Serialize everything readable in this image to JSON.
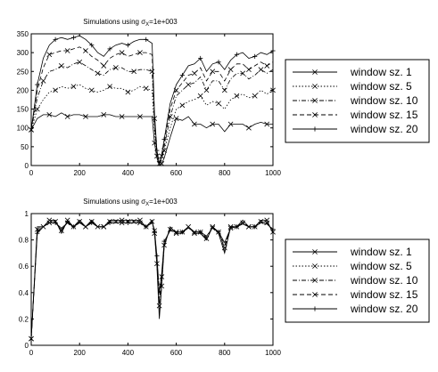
{
  "chart_data": [
    {
      "type": "line",
      "title_prefix": "Simulations using ",
      "title_symbol": "σ",
      "title_sub": "X",
      "title_suffix": "=1e+003",
      "xlim": [
        0,
        1000
      ],
      "ylim": [
        0,
        350
      ],
      "xticks": [
        0,
        200,
        400,
        600,
        800,
        1000
      ],
      "yticks": [
        0,
        50,
        100,
        150,
        200,
        250,
        300,
        350
      ],
      "grid": false,
      "legend_position": "right",
      "x": [
        0,
        25,
        50,
        75,
        100,
        125,
        150,
        175,
        200,
        225,
        250,
        275,
        300,
        325,
        350,
        375,
        400,
        425,
        450,
        475,
        500,
        510,
        520,
        530,
        540,
        550,
        575,
        600,
        625,
        650,
        675,
        700,
        725,
        750,
        775,
        800,
        825,
        850,
        875,
        900,
        925,
        950,
        975,
        1000
      ],
      "series": [
        {
          "name": "window sz. 1",
          "marker": "x",
          "dash": "",
          "values": [
            95,
            125,
            135,
            135,
            130,
            140,
            130,
            135,
            135,
            130,
            130,
            130,
            135,
            135,
            130,
            130,
            130,
            130,
            130,
            130,
            130,
            60,
            20,
            0,
            5,
            20,
            75,
            125,
            120,
            130,
            110,
            110,
            100,
            110,
            110,
            90,
            110,
            110,
            110,
            100,
            110,
            115,
            110,
            110
          ]
        },
        {
          "name": "window sz. 5",
          "marker": "x",
          "dash": "1.5,2",
          "values": [
            95,
            150,
            175,
            195,
            200,
            210,
            205,
            210,
            215,
            205,
            200,
            195,
            200,
            210,
            205,
            205,
            195,
            200,
            210,
            205,
            200,
            90,
            25,
            5,
            15,
            40,
            100,
            150,
            160,
            170,
            175,
            185,
            160,
            170,
            165,
            150,
            175,
            185,
            190,
            180,
            185,
            200,
            190,
            200
          ]
        },
        {
          "name": "window sz. 10",
          "marker": "x",
          "dash": "5,2,1,2",
          "values": [
            95,
            180,
            225,
            250,
            255,
            265,
            260,
            270,
            275,
            265,
            255,
            245,
            240,
            255,
            260,
            260,
            250,
            250,
            255,
            255,
            250,
            110,
            30,
            5,
            20,
            50,
            130,
            185,
            200,
            215,
            220,
            235,
            200,
            225,
            225,
            200,
            230,
            245,
            245,
            230,
            240,
            255,
            245,
            255
          ]
        },
        {
          "name": "window sz. 15",
          "marker": "x",
          "dash": "5,3",
          "values": [
            95,
            200,
            260,
            295,
            300,
            305,
            305,
            310,
            315,
            305,
            290,
            280,
            265,
            285,
            295,
            300,
            290,
            295,
            300,
            300,
            295,
            125,
            35,
            5,
            25,
            60,
            150,
            200,
            220,
            240,
            245,
            260,
            225,
            250,
            250,
            225,
            255,
            270,
            270,
            255,
            265,
            275,
            265,
            275
          ]
        },
        {
          "name": "window sz. 20",
          "marker": "+",
          "dash": "",
          "values": [
            95,
            215,
            285,
            320,
            335,
            340,
            335,
            340,
            345,
            335,
            320,
            300,
            290,
            310,
            320,
            325,
            320,
            330,
            335,
            335,
            325,
            140,
            40,
            5,
            30,
            70,
            165,
            215,
            240,
            265,
            270,
            285,
            250,
            270,
            275,
            255,
            280,
            295,
            300,
            285,
            290,
            300,
            295,
            305
          ]
        }
      ]
    },
    {
      "type": "line",
      "title_prefix": "Simulations using ",
      "title_symbol": "σ",
      "title_sub": "X",
      "title_suffix": "=1e+003",
      "xlim": [
        0,
        1000
      ],
      "ylim": [
        0,
        1
      ],
      "xticks": [
        0,
        200,
        400,
        600,
        800,
        1000
      ],
      "yticks": [
        0,
        0.2,
        0.4,
        0.6,
        0.8,
        1
      ],
      "grid": false,
      "legend_position": "right",
      "x": [
        0,
        25,
        50,
        75,
        100,
        125,
        150,
        175,
        200,
        225,
        250,
        275,
        300,
        325,
        350,
        375,
        400,
        425,
        450,
        475,
        500,
        510,
        520,
        530,
        540,
        550,
        575,
        600,
        625,
        650,
        675,
        700,
        725,
        750,
        775,
        800,
        825,
        850,
        875,
        900,
        925,
        950,
        975,
        1000
      ],
      "series": [
        {
          "name": "window sz. 1",
          "marker": "x",
          "dash": "",
          "values": [
            0.05,
            0.9,
            0.9,
            0.95,
            0.95,
            0.85,
            0.95,
            0.9,
            0.95,
            0.9,
            0.95,
            0.9,
            0.9,
            0.95,
            0.95,
            0.95,
            0.95,
            0.95,
            0.95,
            0.9,
            0.95,
            0.85,
            0.6,
            0.2,
            0.45,
            0.75,
            0.9,
            0.85,
            0.85,
            0.9,
            0.85,
            0.85,
            0.8,
            0.9,
            0.85,
            0.7,
            0.9,
            0.9,
            0.95,
            0.9,
            0.9,
            0.95,
            0.95,
            0.85
          ]
        },
        {
          "name": "window sz. 5",
          "marker": "x",
          "dash": "1.5,2",
          "values": [
            0.05,
            0.88,
            0.9,
            0.94,
            0.94,
            0.86,
            0.94,
            0.9,
            0.94,
            0.9,
            0.94,
            0.9,
            0.9,
            0.94,
            0.94,
            0.94,
            0.94,
            0.94,
            0.94,
            0.9,
            0.94,
            0.86,
            0.62,
            0.25,
            0.47,
            0.76,
            0.89,
            0.86,
            0.86,
            0.9,
            0.86,
            0.86,
            0.8,
            0.9,
            0.86,
            0.72,
            0.9,
            0.9,
            0.94,
            0.9,
            0.9,
            0.94,
            0.94,
            0.86
          ]
        },
        {
          "name": "window sz. 10",
          "marker": "x",
          "dash": "5,2,1,2",
          "values": [
            0.05,
            0.87,
            0.9,
            0.94,
            0.94,
            0.87,
            0.94,
            0.9,
            0.94,
            0.9,
            0.94,
            0.9,
            0.9,
            0.94,
            0.94,
            0.94,
            0.94,
            0.94,
            0.94,
            0.9,
            0.94,
            0.87,
            0.64,
            0.3,
            0.5,
            0.77,
            0.88,
            0.86,
            0.86,
            0.9,
            0.86,
            0.86,
            0.81,
            0.9,
            0.86,
            0.74,
            0.9,
            0.9,
            0.93,
            0.9,
            0.9,
            0.94,
            0.93,
            0.87
          ]
        },
        {
          "name": "window sz. 15",
          "marker": "x",
          "dash": "5,3",
          "values": [
            0.05,
            0.86,
            0.9,
            0.93,
            0.93,
            0.88,
            0.93,
            0.9,
            0.93,
            0.9,
            0.93,
            0.9,
            0.9,
            0.93,
            0.93,
            0.93,
            0.93,
            0.93,
            0.93,
            0.9,
            0.93,
            0.87,
            0.66,
            0.35,
            0.52,
            0.78,
            0.88,
            0.86,
            0.86,
            0.9,
            0.86,
            0.86,
            0.82,
            0.89,
            0.86,
            0.76,
            0.89,
            0.9,
            0.93,
            0.9,
            0.9,
            0.93,
            0.93,
            0.88
          ]
        },
        {
          "name": "window sz. 20",
          "marker": "+",
          "dash": "",
          "values": [
            0.05,
            0.85,
            0.9,
            0.93,
            0.93,
            0.89,
            0.93,
            0.9,
            0.93,
            0.9,
            0.93,
            0.9,
            0.9,
            0.93,
            0.93,
            0.93,
            0.93,
            0.93,
            0.93,
            0.9,
            0.93,
            0.88,
            0.68,
            0.4,
            0.55,
            0.79,
            0.87,
            0.86,
            0.86,
            0.89,
            0.86,
            0.86,
            0.83,
            0.89,
            0.86,
            0.78,
            0.89,
            0.9,
            0.92,
            0.9,
            0.9,
            0.93,
            0.92,
            0.88
          ]
        }
      ]
    }
  ]
}
